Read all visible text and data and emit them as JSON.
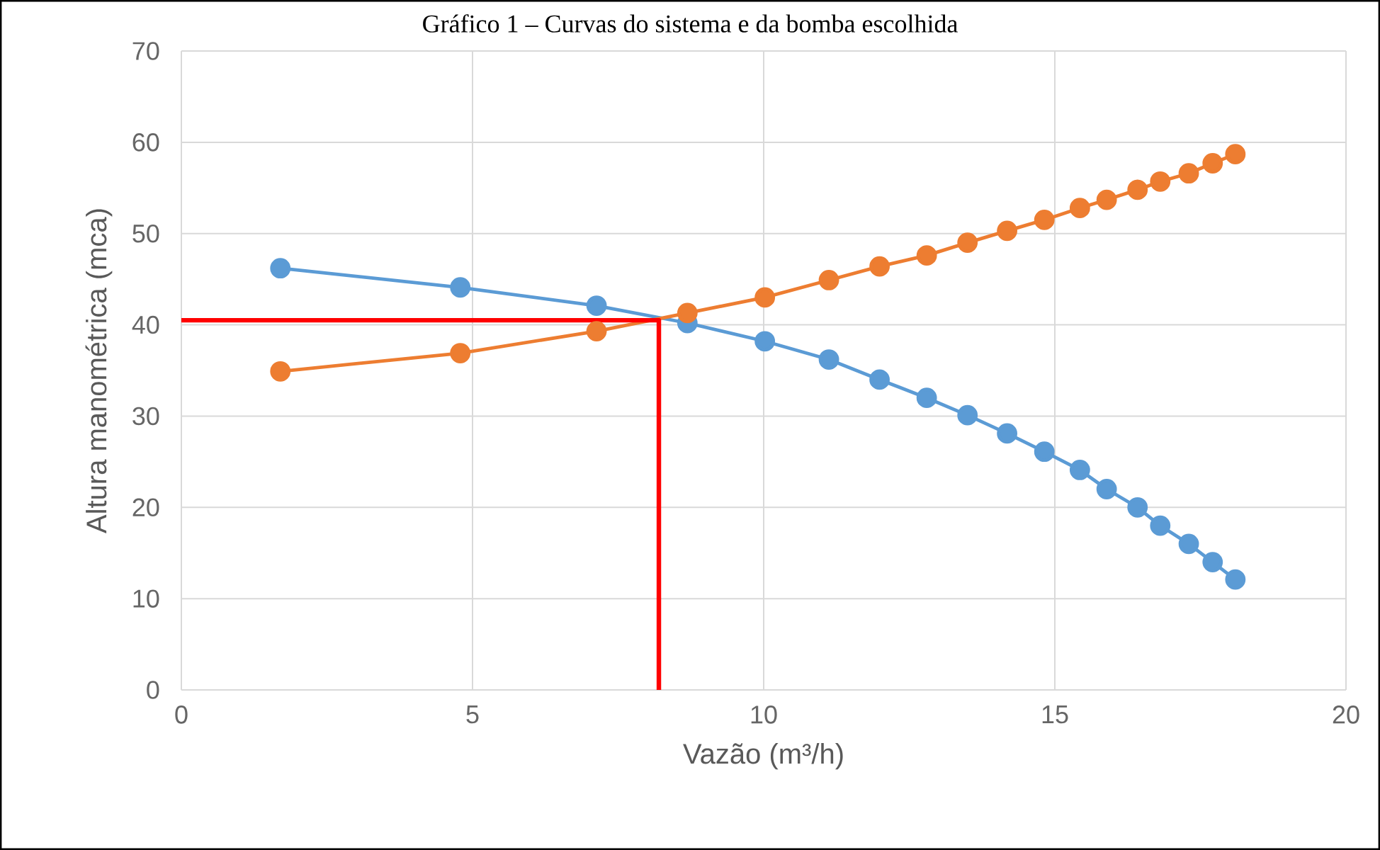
{
  "chart_data": {
    "type": "line",
    "title": "Gráfico 1 – Curvas do sistema e da bomba escolhida",
    "xlabel": "Vazão (m³/h)",
    "ylabel": "Altura manométrica (mca)",
    "xlim": [
      0,
      20
    ],
    "ylim": [
      0,
      70
    ],
    "xticks": [
      0,
      5,
      10,
      15,
      20
    ],
    "yticks": [
      0,
      10,
      20,
      30,
      40,
      50,
      60,
      70
    ],
    "grid": true,
    "marker": "circle",
    "line_style": "solid",
    "series": [
      {
        "color": "#5b9bd5",
        "x": [
          1.7,
          4.79,
          7.13,
          8.69,
          10.02,
          11.12,
          11.99,
          12.8,
          13.5,
          14.18,
          14.82,
          15.43,
          15.89,
          16.42,
          16.81,
          17.3,
          17.71,
          18.1
        ],
        "values": [
          46.2,
          44.1,
          42.1,
          40.2,
          38.2,
          36.2,
          34.0,
          32.0,
          30.1,
          28.1,
          26.1,
          24.1,
          22.0,
          20.0,
          18.0,
          16.0,
          14.0,
          12.1
        ]
      },
      {
        "color": "#ed7d31",
        "x": [
          1.7,
          4.79,
          7.13,
          8.69,
          10.02,
          11.12,
          11.99,
          12.8,
          13.5,
          14.18,
          14.82,
          15.43,
          15.89,
          16.42,
          16.81,
          17.3,
          17.71,
          18.1
        ],
        "values": [
          34.9,
          36.9,
          39.3,
          41.3,
          43.0,
          44.9,
          46.4,
          47.6,
          49.0,
          50.3,
          51.5,
          52.8,
          53.7,
          54.8,
          55.7,
          56.6,
          57.7,
          58.7
        ]
      },
      {
        "color": "#ff0000",
        "marker": "none",
        "x": [
          0,
          8.2,
          8.2
        ],
        "values": [
          40.5,
          40.5,
          0
        ]
      }
    ]
  }
}
